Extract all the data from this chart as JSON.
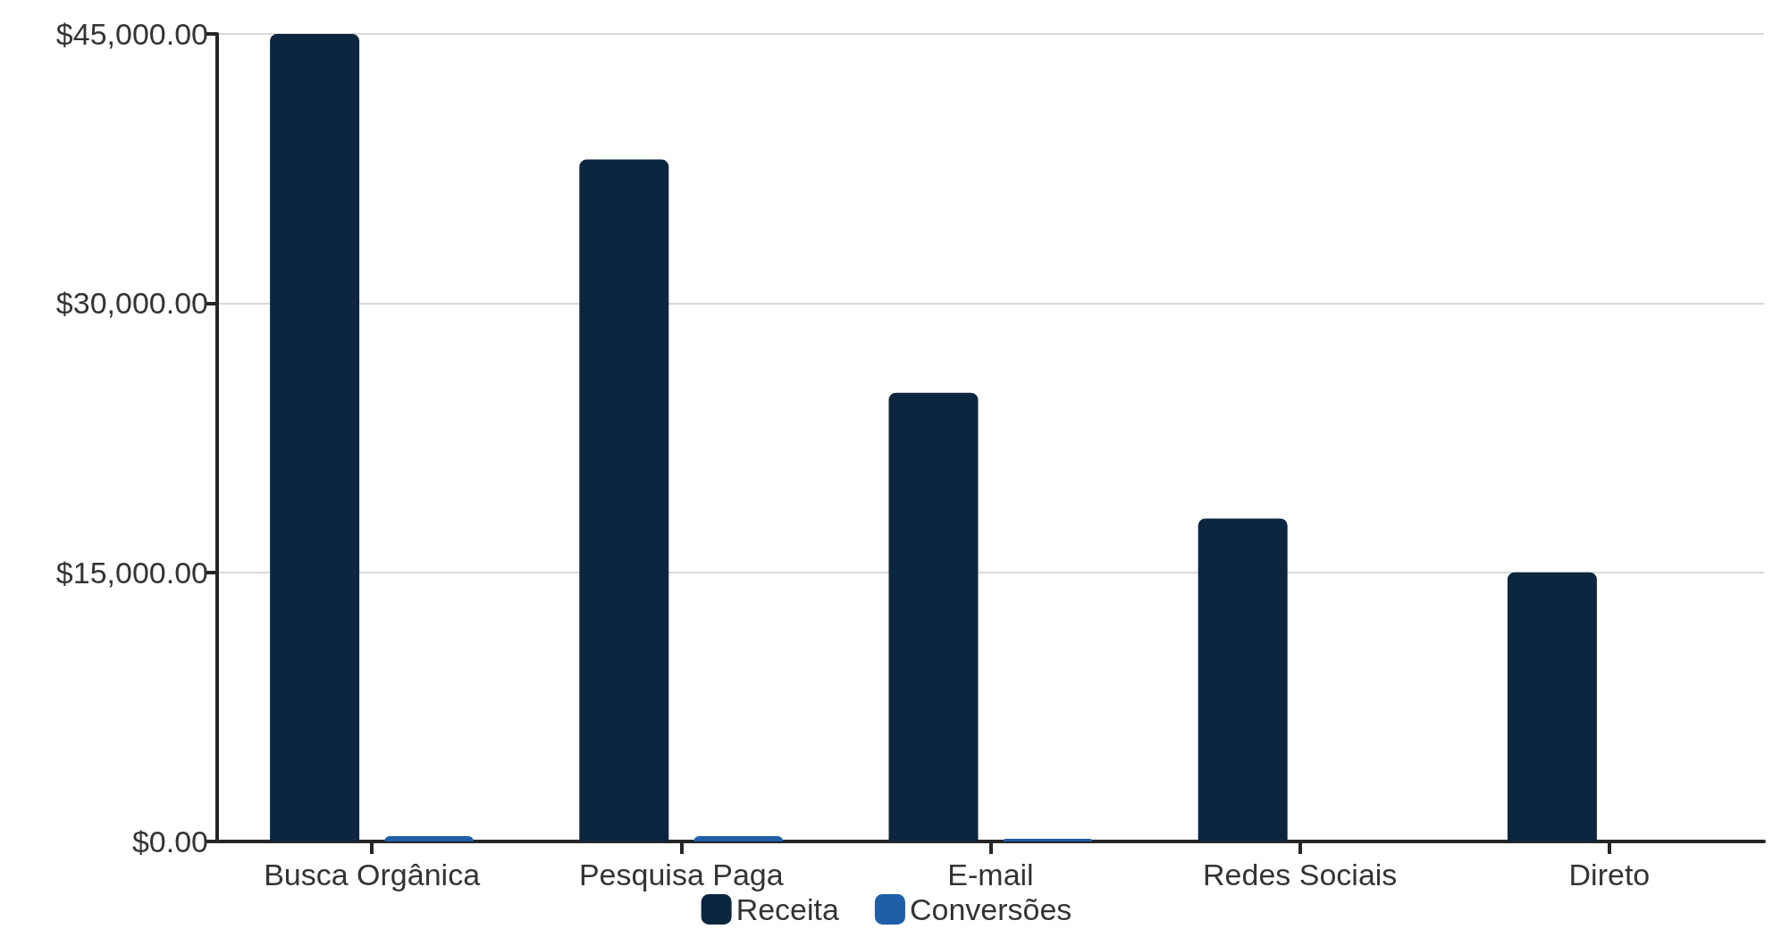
{
  "chart_data": {
    "type": "bar",
    "categories": [
      "Busca Orgânica",
      "Pesquisa Paga",
      "E-mail",
      "Redes Sociais",
      "Direto"
    ],
    "series": [
      {
        "name": "Receita",
        "color": "#0d2640",
        "values": [
          45000,
          38000,
          25000,
          18000,
          15000
        ]
      },
      {
        "name": "Conversões",
        "color": "#1f5ea8",
        "values": [
          300,
          300,
          150,
          0,
          0
        ]
      }
    ],
    "ylim": [
      0,
      45000
    ],
    "yticks": [
      {
        "value": 0,
        "label": "$0.00"
      },
      {
        "value": 15000,
        "label": "$15,000.00"
      },
      {
        "value": 30000,
        "label": "$30,000.00"
      },
      {
        "value": 45000,
        "label": "$45,000.00"
      }
    ],
    "grid": "y",
    "legend": "bottom"
  }
}
